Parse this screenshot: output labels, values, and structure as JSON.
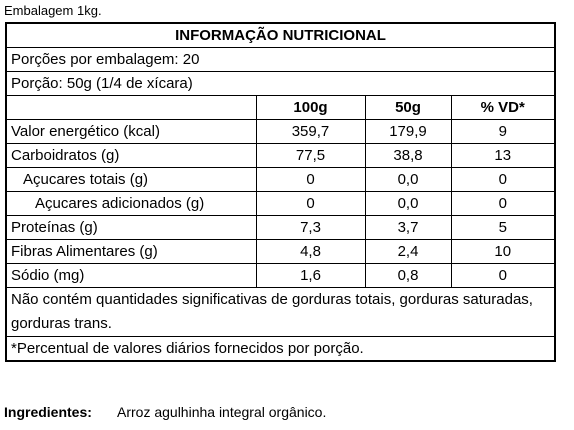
{
  "header_note": "Embalagem 1kg.",
  "table": {
    "title": "INFORMAÇÃO NUTRICIONAL",
    "servings": "Porções por embalagem: 20",
    "portion": "Porção: 50g (1/4 de xícara)",
    "columns": [
      "100g",
      "50g",
      "% VD*"
    ],
    "rows": [
      [
        "Valor energético (kcal)",
        "359,7",
        "179,9",
        "9"
      ],
      [
        "Carboidratos (g)",
        "77,5",
        "38,8",
        "13"
      ],
      [
        "Açucares totais (g)",
        "0",
        "0,0",
        "0"
      ],
      [
        "Açucares adicionados (g)",
        "0",
        "0,0",
        "0"
      ],
      [
        "Proteínas (g)",
        "7,3",
        "3,7",
        "5"
      ],
      [
        "Fibras Alimentares (g)",
        "4,8",
        "2,4",
        "10"
      ],
      [
        "Sódio (mg)",
        "1,6",
        "0,8",
        "0"
      ]
    ],
    "footnotes": [
      "Não contém quantidades significativas de gorduras totais, gorduras saturadas, gorduras trans.",
      "*Percentual de valores diários fornecidos por porção."
    ]
  },
  "ingredients": {
    "label": "Ingredientes:",
    "value": "Arroz agulhinha integral orgânico."
  }
}
